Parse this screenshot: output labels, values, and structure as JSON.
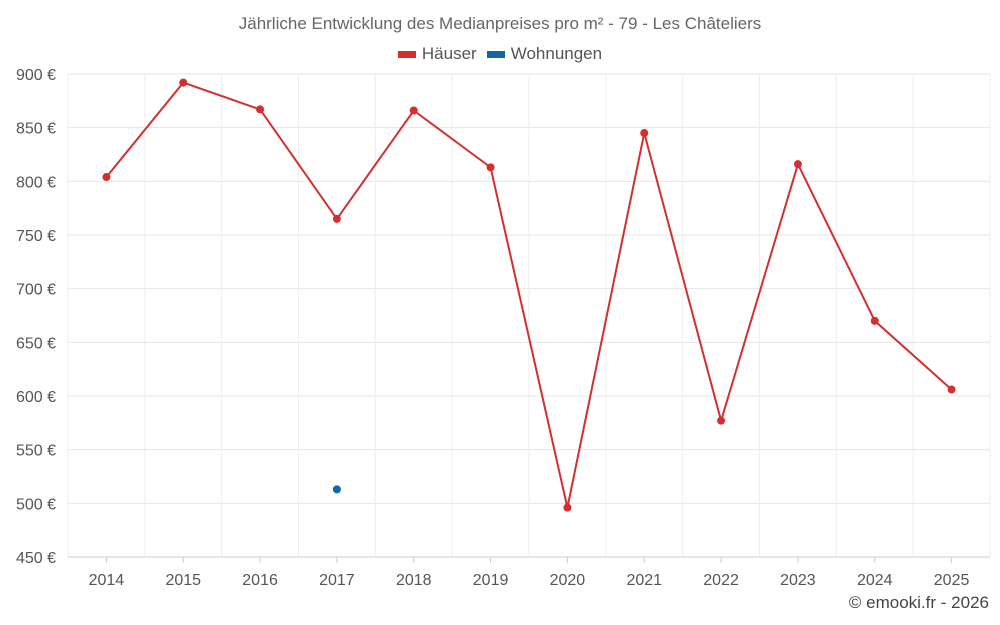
{
  "chart_data": {
    "type": "line",
    "title": "Jährliche Entwicklung des Medianpreises pro m² - 79 - Les Châteliers",
    "categories": [
      "2014",
      "2015",
      "2016",
      "2017",
      "2018",
      "2019",
      "2020",
      "2021",
      "2022",
      "2023",
      "2024",
      "2025"
    ],
    "series": [
      {
        "name": "Häuser",
        "color": "#d32f2f",
        "values": [
          804,
          892,
          867,
          765,
          866,
          813,
          496,
          845,
          577,
          816,
          670,
          606
        ]
      },
      {
        "name": "Wohnungen",
        "color": "#1565a5",
        "values": [
          null,
          null,
          null,
          513,
          null,
          null,
          null,
          null,
          null,
          null,
          null,
          null
        ]
      }
    ],
    "ylim": [
      450,
      900
    ],
    "yticks": [
      450,
      500,
      550,
      600,
      650,
      700,
      750,
      800,
      850,
      900
    ],
    "yunit": "€",
    "grid": true,
    "legend_position": "top-center"
  },
  "credit": "© emooki.fr - 2026"
}
